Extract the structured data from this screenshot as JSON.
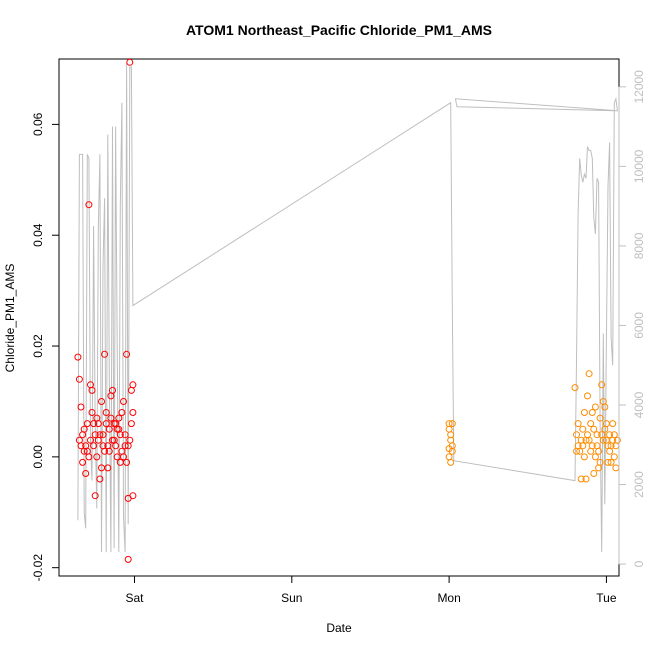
{
  "chart_data": {
    "type": "scatter",
    "title": "ATOM1 Northeast_Pacific Chloride_PM1_AMS",
    "xlabel": "Date",
    "ylabel": "Chloride_PM1_AMS",
    "x_ticks": [
      "Sat",
      "Sun",
      "Mon",
      "Tue"
    ],
    "x_tick_days": [
      1,
      2,
      3,
      4
    ],
    "xlim_days": [
      0.52,
      4.08
    ],
    "ylim": [
      -0.0215,
      0.0718
    ],
    "y_ticks": [
      -0.02,
      0.0,
      0.02,
      0.04,
      0.06
    ],
    "y_tick_labels": [
      "-0.02",
      "0.00",
      "0.02",
      "0.04",
      "0.06"
    ],
    "right_axis": {
      "ylim": [
        -300,
        12700
      ],
      "ticks": [
        0,
        2000,
        4000,
        6000,
        8000,
        10000,
        12000
      ],
      "tick_labels": [
        "0",
        "2000",
        "4000",
        "6000",
        "8000",
        "10000",
        "12000"
      ],
      "line_color": "#bebebe",
      "line_points": [
        [
          0.64,
          1100
        ],
        [
          0.65,
          10300
        ],
        [
          0.67,
          10300
        ],
        [
          0.68,
          1300
        ],
        [
          0.69,
          900
        ],
        [
          0.7,
          10300
        ],
        [
          0.71,
          10200
        ],
        [
          0.72,
          3000
        ],
        [
          0.73,
          2100
        ],
        [
          0.74,
          8500
        ],
        [
          0.75,
          3500
        ],
        [
          0.76,
          1400
        ],
        [
          0.77,
          8400
        ],
        [
          0.78,
          10300
        ],
        [
          0.79,
          300
        ],
        [
          0.8,
          7500
        ],
        [
          0.81,
          9200
        ],
        [
          0.82,
          300
        ],
        [
          0.83,
          10800
        ],
        [
          0.84,
          4700
        ],
        [
          0.85,
          300
        ],
        [
          0.86,
          11000
        ],
        [
          0.87,
          400
        ],
        [
          0.88,
          11000
        ],
        [
          0.89,
          5500
        ],
        [
          0.9,
          300
        ],
        [
          0.91,
          9000
        ],
        [
          0.92,
          11600
        ],
        [
          0.93,
          1200
        ],
        [
          0.94,
          300
        ],
        [
          0.95,
          12600
        ],
        [
          0.96,
          1000
        ],
        [
          0.97,
          12500
        ],
        [
          0.98,
          12500
        ],
        [
          0.99,
          6500
        ],
        [
          3.01,
          11600
        ],
        [
          3.02,
          6500
        ],
        [
          3.03,
          2600
        ],
        [
          3.8,
          2100
        ],
        [
          3.81,
          5100
        ],
        [
          3.82,
          8800
        ],
        [
          3.83,
          10200
        ],
        [
          3.84,
          9800
        ],
        [
          3.85,
          9600
        ],
        [
          3.86,
          9800
        ],
        [
          3.87,
          9700
        ],
        [
          3.88,
          10500
        ],
        [
          3.89,
          10400
        ],
        [
          3.9,
          10400
        ],
        [
          3.91,
          10200
        ],
        [
          3.92,
          8700
        ],
        [
          3.93,
          8300
        ],
        [
          3.94,
          9700
        ],
        [
          3.95,
          9600
        ],
        [
          3.96,
          3500
        ],
        [
          3.97,
          300
        ],
        [
          3.98,
          5800
        ],
        [
          3.99,
          1500
        ],
        [
          4.0,
          5600
        ],
        [
          4.01,
          9500
        ],
        [
          4.02,
          10600
        ],
        [
          4.03,
          5700
        ],
        [
          4.04,
          5000
        ],
        [
          4.05,
          11600
        ],
        [
          4.06,
          11700
        ],
        [
          4.07,
          11400
        ],
        [
          3.04,
          11700
        ],
        [
          3.05,
          11500
        ],
        [
          4.06,
          11400
        ]
      ]
    },
    "series": [
      {
        "color": "#ff0000",
        "points": [
          [
            0.64,
            0.018
          ],
          [
            0.65,
            0.014
          ],
          [
            0.66,
            0.009
          ],
          [
            0.67,
            0.004
          ],
          [
            0.68,
            0.001
          ],
          [
            0.69,
            -0.003
          ],
          [
            0.7,
            0.006
          ],
          [
            0.71,
            0.0455
          ],
          [
            0.72,
            0.013
          ],
          [
            0.73,
            0.012
          ],
          [
            0.74,
            0.002
          ],
          [
            0.75,
            -0.007
          ],
          [
            0.76,
            0.007
          ],
          [
            0.77,
            0.003
          ],
          [
            0.78,
            -0.004
          ],
          [
            0.79,
            0.01
          ],
          [
            0.8,
            0.004
          ],
          [
            0.81,
            0.0185
          ],
          [
            0.82,
            0.008
          ],
          [
            0.83,
            -0.002
          ],
          [
            0.84,
            0.005
          ],
          [
            0.85,
            0.011
          ],
          [
            0.86,
            0.012
          ],
          [
            0.87,
            0.003
          ],
          [
            0.88,
            0.006
          ],
          [
            0.89,
            0.0
          ],
          [
            0.9,
            0.007
          ],
          [
            0.91,
            0.004
          ],
          [
            0.92,
            0.008
          ],
          [
            0.93,
            0.01
          ],
          [
            0.94,
            0.002
          ],
          [
            0.95,
            0.0185
          ],
          [
            0.96,
            -0.0185
          ],
          [
            0.97,
            0.0712
          ],
          [
            0.98,
            0.012
          ],
          [
            0.99,
            0.008
          ],
          [
            0.66,
            0.002
          ],
          [
            0.68,
            0.005
          ],
          [
            0.7,
            0.001
          ],
          [
            0.72,
            0.003
          ],
          [
            0.74,
            0.006
          ],
          [
            0.76,
            0.0
          ],
          [
            0.78,
            0.004
          ],
          [
            0.8,
            0.002
          ],
          [
            0.82,
            0.006
          ],
          [
            0.84,
            0.001
          ],
          [
            0.86,
            0.003
          ],
          [
            0.88,
            0.002
          ],
          [
            0.9,
            0.005
          ],
          [
            0.92,
            0.001
          ],
          [
            0.94,
            0.004
          ],
          [
            0.96,
            0.002
          ],
          [
            0.98,
            0.006
          ],
          [
            0.67,
            -0.001
          ],
          [
            0.73,
            0.008
          ],
          [
            0.79,
            -0.002
          ],
          [
            0.85,
            0.007
          ],
          [
            0.91,
            -0.001
          ],
          [
            0.97,
            0.003
          ],
          [
            0.99,
            -0.007
          ],
          [
            0.65,
            0.003
          ],
          [
            0.71,
            0.0
          ],
          [
            0.77,
            0.006
          ],
          [
            0.83,
            0.002
          ],
          [
            0.89,
            0.005
          ],
          [
            0.95,
            -0.001
          ],
          [
            0.69,
            0.002
          ],
          [
            0.75,
            0.004
          ],
          [
            0.81,
            0.001
          ],
          [
            0.87,
            0.006
          ],
          [
            0.93,
            0.0
          ],
          [
            0.99,
            0.013
          ],
          [
            0.96,
            -0.0075
          ]
        ]
      },
      {
        "color": "#ff8c00",
        "points": [
          [
            3.0,
            0.006
          ],
          [
            3.0,
            0.005
          ],
          [
            3.01,
            0.004
          ],
          [
            3.01,
            0.003
          ],
          [
            3.02,
            0.002
          ],
          [
            3.02,
            0.001
          ],
          [
            3.0,
            0.0
          ],
          [
            3.01,
            -0.001
          ],
          [
            3.02,
            0.006
          ],
          [
            3.0,
            0.0015
          ],
          [
            3.8,
            0.0125
          ],
          [
            3.81,
            0.004
          ],
          [
            3.82,
            0.002
          ],
          [
            3.83,
            0.001
          ],
          [
            3.84,
            -0.004
          ],
          [
            3.85,
            0.005
          ],
          [
            3.86,
            0.008
          ],
          [
            3.87,
            0.003
          ],
          [
            3.88,
            0.011
          ],
          [
            3.89,
            0.015
          ],
          [
            3.9,
            0.006
          ],
          [
            3.91,
            0.002
          ],
          [
            3.92,
            -0.003
          ],
          [
            3.93,
            0.009
          ],
          [
            3.94,
            0.004
          ],
          [
            3.95,
            0.001
          ],
          [
            3.96,
            0.007
          ],
          [
            3.97,
            0.013
          ],
          [
            3.98,
            0.01
          ],
          [
            3.99,
            0.005
          ],
          [
            4.0,
            0.003
          ],
          [
            4.01,
            -0.001
          ],
          [
            4.02,
            0.004
          ],
          [
            4.03,
            0.002
          ],
          [
            4.04,
            0.006
          ],
          [
            4.05,
            0.0
          ],
          [
            4.06,
            -0.002
          ],
          [
            4.07,
            0.003
          ],
          [
            3.82,
            0.006
          ],
          [
            3.84,
            0.003
          ],
          [
            3.86,
            0.0
          ],
          [
            3.88,
            0.004
          ],
          [
            3.9,
            0.001
          ],
          [
            3.92,
            0.005
          ],
          [
            3.94,
            0.002
          ],
          [
            3.96,
            -0.001
          ],
          [
            3.98,
            0.003
          ],
          [
            4.0,
            0.006
          ],
          [
            4.02,
            0.001
          ],
          [
            4.04,
            0.003
          ],
          [
            4.06,
            0.002
          ],
          [
            3.81,
            0.001
          ],
          [
            3.85,
            0.002
          ],
          [
            3.89,
            0.003
          ],
          [
            3.93,
            0.0
          ],
          [
            3.97,
            0.004
          ],
          [
            4.01,
            0.002
          ],
          [
            4.05,
            0.004
          ],
          [
            3.87,
            -0.004
          ],
          [
            3.91,
            0.008
          ],
          [
            3.95,
            -0.002
          ],
          [
            3.99,
            0.009
          ],
          [
            4.03,
            -0.001
          ]
        ]
      }
    ]
  }
}
